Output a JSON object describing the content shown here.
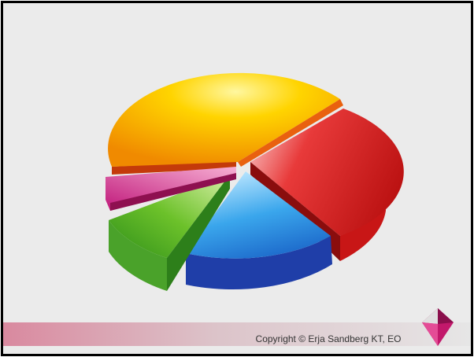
{
  "footer": {
    "copyright": "Copyright © Erja Sandberg KT, EO"
  }
}
